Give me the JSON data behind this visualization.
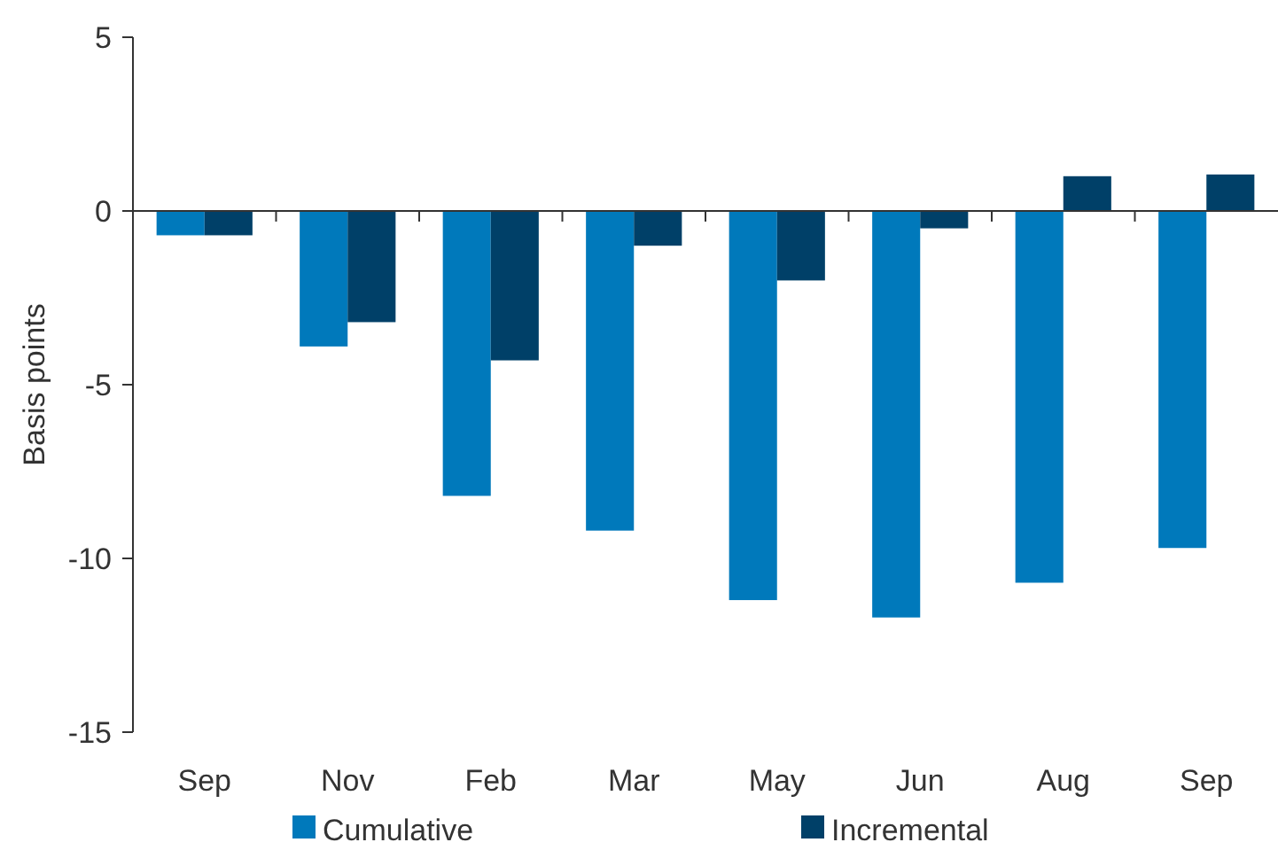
{
  "chart_data": {
    "type": "bar",
    "ylabel": "Basis points",
    "categories": [
      "Sep",
      "Nov",
      "Feb",
      "Mar",
      "May",
      "Jun",
      "Aug",
      "Sep"
    ],
    "series": [
      {
        "name": "Cumulative",
        "color": "#0079bb",
        "values": [
          -0.7,
          -3.9,
          -8.2,
          -9.2,
          -11.2,
          -11.7,
          -10.7,
          -9.7
        ]
      },
      {
        "name": "Incremental",
        "color": "#004068",
        "values": [
          -0.7,
          -3.2,
          -4.3,
          -1.0,
          -2.0,
          -0.5,
          1.0,
          1.05
        ]
      }
    ],
    "ylim": [
      -15,
      5
    ],
    "yticks": [
      -15,
      -10,
      -5,
      0,
      5
    ],
    "legend": "bottom"
  }
}
